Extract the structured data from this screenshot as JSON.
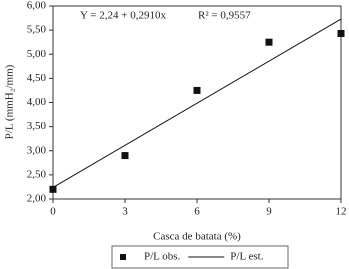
{
  "chart_data": {
    "type": "scatter",
    "annotation": "Y = 2,24 + 0,2910x",
    "annotation_r2": "R² = 0,9557",
    "x_label": "Casca de batata (%)",
    "y_label": "P/L (mmH₂/mm)",
    "series": [
      {
        "name": "P/L obs.",
        "mark": "square",
        "color": "#111111",
        "x": [
          0,
          3,
          6,
          9,
          12
        ],
        "values": [
          2.2,
          2.9,
          4.25,
          5.25,
          5.43
        ]
      },
      {
        "name": "P/L  est.",
        "mark": "line",
        "color": "#111111",
        "x": [
          0,
          12
        ],
        "values": [
          2.24,
          5.73
        ]
      }
    ],
    "xlim": [
      0,
      12
    ],
    "xticks": [
      0,
      3,
      6,
      9,
      12
    ],
    "ylim": [
      2,
      6
    ],
    "yticks": [
      {
        "value": 2,
        "label": "2,00"
      },
      {
        "value": 2.5,
        "label": "2,50"
      },
      {
        "value": 3,
        "label": "3,00"
      },
      {
        "value": 3.5,
        "label": "3,50"
      },
      {
        "value": 4,
        "label": "4,00"
      },
      {
        "value": 4.5,
        "label": "4,50"
      },
      {
        "value": 5,
        "label": "5,00"
      },
      {
        "value": 5.5,
        "label": "5,50"
      },
      {
        "value": 6,
        "label": "6,00"
      }
    ],
    "legend": "bottom"
  }
}
